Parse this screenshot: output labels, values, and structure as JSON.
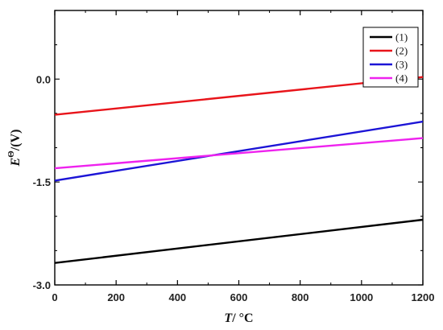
{
  "chart_data": {
    "type": "line",
    "title": "",
    "xlabel": {
      "var": "T",
      "unit": "/ °C"
    },
    "ylabel": {
      "var": "E",
      "sup": "Θ",
      "unit": "/(V)"
    },
    "xlim": [
      0,
      1200
    ],
    "ylim": [
      -3.0,
      1.0
    ],
    "x_ticks": [
      0,
      200,
      400,
      600,
      800,
      1000,
      1200
    ],
    "y_ticks": [
      0.0,
      -1.5,
      -3.0
    ],
    "y_tick_labels": [
      "0.0",
      "-1.5",
      "-3.0"
    ],
    "grid": false,
    "legend_position": "top-right",
    "series": [
      {
        "name": "(1)",
        "color": "#000000",
        "x": [
          0,
          1200
        ],
        "y": [
          -2.68,
          -2.05
        ]
      },
      {
        "name": "(2)",
        "color": "#e8141a",
        "x": [
          0,
          1200
        ],
        "y": [
          -0.52,
          0.03
        ]
      },
      {
        "name": "(3)",
        "color": "#1c14d6",
        "x": [
          0,
          1200
        ],
        "y": [
          -1.48,
          -0.62
        ]
      },
      {
        "name": "(4)",
        "color": "#ee22ee",
        "x": [
          0,
          1200
        ],
        "y": [
          -1.3,
          -0.86
        ]
      }
    ]
  }
}
